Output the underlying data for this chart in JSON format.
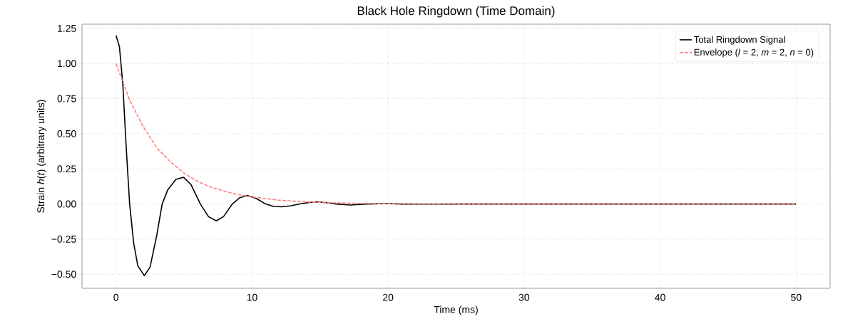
{
  "chart_data": {
    "type": "line",
    "title": "Black Hole Ringdown (Time Domain)",
    "xlabel": "Time (ms)",
    "ylabel": "Strain *h*(*t*) (arbitrary units)",
    "xlim": [
      -2.5,
      52.5
    ],
    "ylim": [
      -0.6,
      1.28
    ],
    "xticks": [
      0,
      10,
      20,
      30,
      40,
      50
    ],
    "yticks": [
      {
        "value": -0.5,
        "label": "−0.50"
      },
      {
        "value": -0.25,
        "label": "−0.25"
      },
      {
        "value": 0,
        "label": "0.00"
      },
      {
        "value": 0.25,
        "label": "0.25"
      },
      {
        "value": 0.5,
        "label": "0.50"
      },
      {
        "value": 0.75,
        "label": "0.75"
      },
      {
        "value": 1.0,
        "label": "1.00"
      },
      {
        "value": 1.25,
        "label": "1.25"
      }
    ],
    "grid": true,
    "legend": "top right",
    "series": [
      {
        "name": "Total Ringdown Signal",
        "color": "#000000",
        "line_style": "solid",
        "x": [
          0,
          0.25,
          0.5,
          0.75,
          1.0,
          1.3,
          1.6,
          2.08,
          2.5,
          3.0,
          3.39,
          3.8,
          4.4,
          4.96,
          5.5,
          6.2,
          6.8,
          7.37,
          7.9,
          8.55,
          9.1,
          9.68,
          10.3,
          11,
          11.6,
          12.2,
          12.9,
          13.5,
          14.2,
          14.8,
          15.5,
          16.2,
          17.2,
          18.5,
          19.8,
          21,
          22.5,
          25,
          50
        ],
        "values": [
          1.2,
          1.12,
          0.85,
          0.4,
          0.0,
          -0.28,
          -0.44,
          -0.51,
          -0.45,
          -0.22,
          0.0,
          0.1,
          0.175,
          0.19,
          0.14,
          0.0,
          -0.09,
          -0.12,
          -0.09,
          0.0,
          0.045,
          0.06,
          0.04,
          0.0,
          -0.017,
          -0.02,
          -0.012,
          0.0,
          0.011,
          0.015,
          0.009,
          0.0,
          -0.007,
          0.0,
          0.003,
          0.0,
          -0.001,
          0.0,
          0.0
        ]
      },
      {
        "name": "Envelope (*l* = 2, *m* = 2, *n* = 0)",
        "color": "#ff8080",
        "line_style": "dashed",
        "x": [
          0,
          1,
          2,
          3,
          4,
          5,
          6,
          7,
          8,
          9,
          10,
          12,
          14,
          16,
          18,
          20,
          25,
          30,
          50
        ],
        "values": [
          1.0,
          0.74,
          0.55,
          0.4,
          0.3,
          0.22,
          0.16,
          0.12,
          0.09,
          0.066,
          0.05,
          0.027,
          0.015,
          0.008,
          0.004,
          0.002,
          0.0,
          0.0,
          0.0
        ]
      }
    ]
  }
}
